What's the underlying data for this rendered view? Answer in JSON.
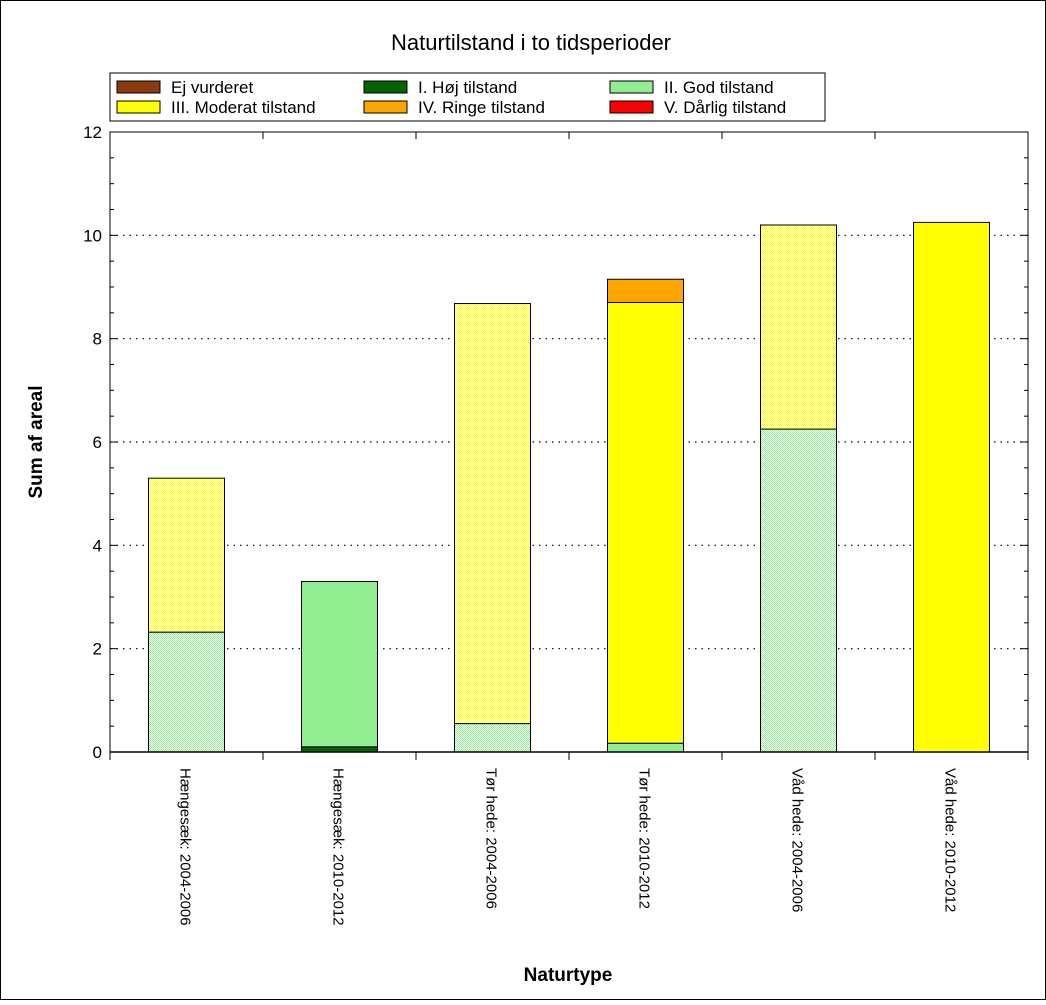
{
  "chart_data": {
    "type": "bar",
    "stacked": true,
    "title": "Naturtilstand i to tidsperioder",
    "xlabel": "Naturtype",
    "ylabel": "Sum af areal",
    "ylim": [
      0,
      12
    ],
    "yticks": [
      "0",
      "2",
      "4",
      "6",
      "8",
      "10",
      "12"
    ],
    "grid": "horizontal-dotted",
    "legend_position": "top",
    "categories": [
      "Hængesæk: 2004-2006",
      "Hængesæk: 2010-2012",
      "Tør hede: 2004-2006",
      "Tør hede: 2010-2012",
      "Våd hede: 2004-2006",
      "Våd hede: 2010-2012"
    ],
    "series": [
      {
        "name": "Ej vurderet",
        "color": "#8b3a0f",
        "hatched": [
          false,
          false,
          false,
          false,
          false,
          false
        ],
        "values": [
          0,
          0,
          0,
          0,
          0,
          0
        ]
      },
      {
        "name": "I. Høj tilstand",
        "color": "#006400",
        "hatched": [
          false,
          false,
          false,
          false,
          false,
          false
        ],
        "values": [
          0,
          0.1,
          0,
          0,
          0,
          0
        ]
      },
      {
        "name": "II. God tilstand",
        "color": "#90ee90",
        "hatched": [
          true,
          false,
          true,
          false,
          true,
          false
        ],
        "values": [
          2.32,
          3.2,
          0.55,
          0.17,
          6.25,
          0
        ]
      },
      {
        "name": "III. Moderat tilstand",
        "color": "#ffff00",
        "hatched": [
          true,
          false,
          true,
          false,
          true,
          false
        ],
        "values": [
          2.98,
          0,
          8.13,
          8.53,
          3.95,
          10.25
        ]
      },
      {
        "name": "IV. Ringe tilstand",
        "color": "#ffa500",
        "hatched": [
          false,
          false,
          false,
          false,
          false,
          false
        ],
        "values": [
          0,
          0,
          0,
          0.45,
          0,
          0
        ]
      },
      {
        "name": "V. Dårlig tilstand",
        "color": "#ff0000",
        "hatched": [
          false,
          false,
          false,
          false,
          false,
          false
        ],
        "values": [
          0,
          0,
          0,
          0,
          0,
          0
        ]
      }
    ]
  }
}
